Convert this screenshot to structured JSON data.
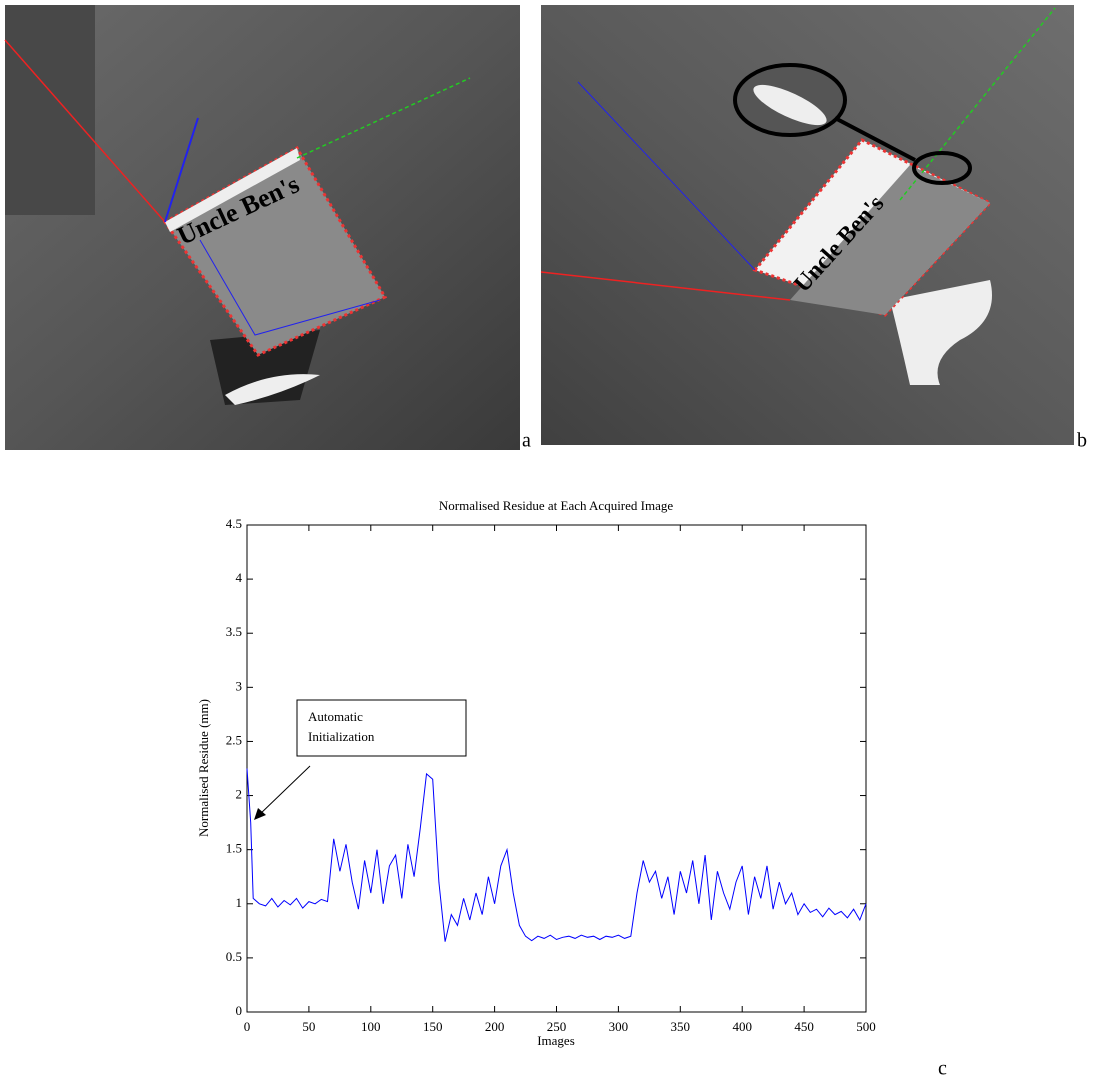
{
  "figure_labels": {
    "a": "a",
    "b": "b",
    "c": "c"
  },
  "chart_data": {
    "type": "line",
    "title": "Normalised Residue at Each Acquired Image",
    "xlabel": "Images",
    "ylabel": "Normalised Residue (mm)",
    "annotations": [
      "Automatic",
      "Initialization"
    ],
    "color": "#0000ff",
    "grid": false,
    "xlim": [
      0,
      500
    ],
    "xticks": [
      0,
      50,
      100,
      150,
      200,
      250,
      300,
      350,
      400,
      450,
      500
    ],
    "ylim": [
      0,
      4.5
    ],
    "yticks": [
      0,
      0.5,
      1,
      1.5,
      2,
      2.5,
      3,
      3.5,
      4,
      4.5
    ],
    "x": [
      0,
      3,
      5,
      10,
      15,
      20,
      25,
      30,
      35,
      40,
      45,
      50,
      55,
      60,
      65,
      70,
      75,
      80,
      85,
      90,
      95,
      100,
      105,
      110,
      115,
      120,
      125,
      130,
      135,
      140,
      145,
      150,
      155,
      160,
      165,
      170,
      175,
      180,
      185,
      190,
      195,
      200,
      205,
      210,
      215,
      220,
      225,
      230,
      235,
      240,
      245,
      250,
      255,
      260,
      265,
      270,
      275,
      280,
      285,
      290,
      295,
      300,
      305,
      310,
      315,
      320,
      325,
      330,
      335,
      340,
      345,
      350,
      355,
      360,
      365,
      370,
      375,
      380,
      385,
      390,
      395,
      400,
      405,
      410,
      415,
      420,
      425,
      430,
      435,
      440,
      445,
      450,
      455,
      460,
      465,
      470,
      475,
      480,
      485,
      490,
      495,
      500
    ],
    "values": [
      2.25,
      1.75,
      1.05,
      1.0,
      0.98,
      1.05,
      0.97,
      1.03,
      0.99,
      1.05,
      0.96,
      1.02,
      1.0,
      1.04,
      1.02,
      1.6,
      1.3,
      1.55,
      1.2,
      0.95,
      1.4,
      1.1,
      1.5,
      1.0,
      1.35,
      1.45,
      1.05,
      1.55,
      1.25,
      1.7,
      2.2,
      2.15,
      1.2,
      0.65,
      0.9,
      0.8,
      1.05,
      0.85,
      1.1,
      0.9,
      1.25,
      1.0,
      1.35,
      1.5,
      1.1,
      0.8,
      0.7,
      0.66,
      0.7,
      0.68,
      0.71,
      0.67,
      0.69,
      0.7,
      0.68,
      0.71,
      0.69,
      0.7,
      0.67,
      0.7,
      0.69,
      0.71,
      0.68,
      0.7,
      1.1,
      1.4,
      1.2,
      1.3,
      1.05,
      1.25,
      0.9,
      1.3,
      1.1,
      1.4,
      1.0,
      1.45,
      0.85,
      1.3,
      1.1,
      0.95,
      1.2,
      1.35,
      0.9,
      1.25,
      1.05,
      1.35,
      0.95,
      1.2,
      1.0,
      1.1,
      0.9,
      1.0,
      0.92,
      0.95,
      0.88,
      0.96,
      0.9,
      0.93,
      0.87,
      0.95,
      0.85,
      1.0
    ]
  }
}
